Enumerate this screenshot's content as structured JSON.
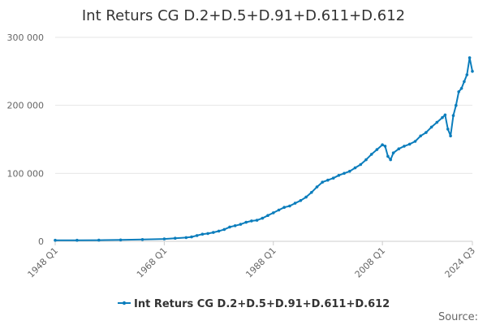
{
  "chart_data": {
    "type": "line",
    "title": "Int Returs CG D.2+D.5+D.91+D.611+D.612",
    "xlabel": "",
    "ylabel": "",
    "x_range": [
      "1948 Q1",
      "2024 Q3"
    ],
    "ylim": [
      0,
      300000
    ],
    "y_ticks": [
      {
        "value": 0,
        "label": "0"
      },
      {
        "value": 100000,
        "label": "100 000"
      },
      {
        "value": 200000,
        "label": "200 000"
      },
      {
        "value": 300000,
        "label": "300 000"
      }
    ],
    "x_ticks": [
      {
        "value": 1948.0,
        "label": "1948 Q1"
      },
      {
        "value": 1968.0,
        "label": "1968 Q1"
      },
      {
        "value": 1988.0,
        "label": "1988 Q1"
      },
      {
        "value": 2008.0,
        "label": "2008 Q1"
      },
      {
        "value": 2024.5,
        "label": "2024 Q3"
      }
    ],
    "grid": {
      "horizontal": true,
      "vertical": false
    },
    "legend_position": "bottom",
    "colors": {
      "series": "#0b7dbc",
      "grid": "#e6e6e6"
    },
    "series": [
      {
        "name": "Int Returs CG D.2+D.5+D.91+D.611+D.612",
        "x": [
          1948.0,
          1952.0,
          1956.0,
          1960.0,
          1964.0,
          1968.0,
          1970.0,
          1972.0,
          1973.0,
          1974.0,
          1975.0,
          1976.0,
          1977.0,
          1978.0,
          1979.0,
          1980.0,
          1981.0,
          1982.0,
          1983.0,
          1984.0,
          1985.0,
          1986.0,
          1987.0,
          1988.0,
          1989.0,
          1990.0,
          1991.0,
          1992.0,
          1993.0,
          1994.0,
          1995.0,
          1996.0,
          1997.0,
          1998.0,
          1999.0,
          2000.0,
          2001.0,
          2002.0,
          2003.0,
          2004.0,
          2005.0,
          2006.0,
          2007.0,
          2008.0,
          2008.5,
          2009.0,
          2009.5,
          2010.0,
          2011.0,
          2012.0,
          2013.0,
          2014.0,
          2015.0,
          2016.0,
          2017.0,
          2018.0,
          2019.0,
          2019.5,
          2020.0,
          2020.5,
          2021.0,
          2021.5,
          2022.0,
          2022.5,
          2023.0,
          2023.5,
          2024.0,
          2024.5
        ],
        "values": [
          1500,
          1600,
          1700,
          2000,
          2600,
          3500,
          4500,
          5500,
          6500,
          8500,
          10500,
          11500,
          13000,
          15000,
          17500,
          21000,
          23000,
          25000,
          28000,
          30000,
          31000,
          34000,
          38000,
          42000,
          46000,
          50000,
          52000,
          56000,
          60000,
          65000,
          72000,
          80000,
          87000,
          90000,
          93000,
          97000,
          100000,
          103000,
          108000,
          113000,
          120000,
          128000,
          135000,
          142000,
          140000,
          125000,
          120000,
          130000,
          136000,
          140000,
          143000,
          147000,
          155000,
          160000,
          168000,
          175000,
          182000,
          186000,
          165000,
          155000,
          185000,
          200000,
          220000,
          225000,
          235000,
          245000,
          270000,
          250000
        ]
      }
    ],
    "source_label": "Source:"
  }
}
